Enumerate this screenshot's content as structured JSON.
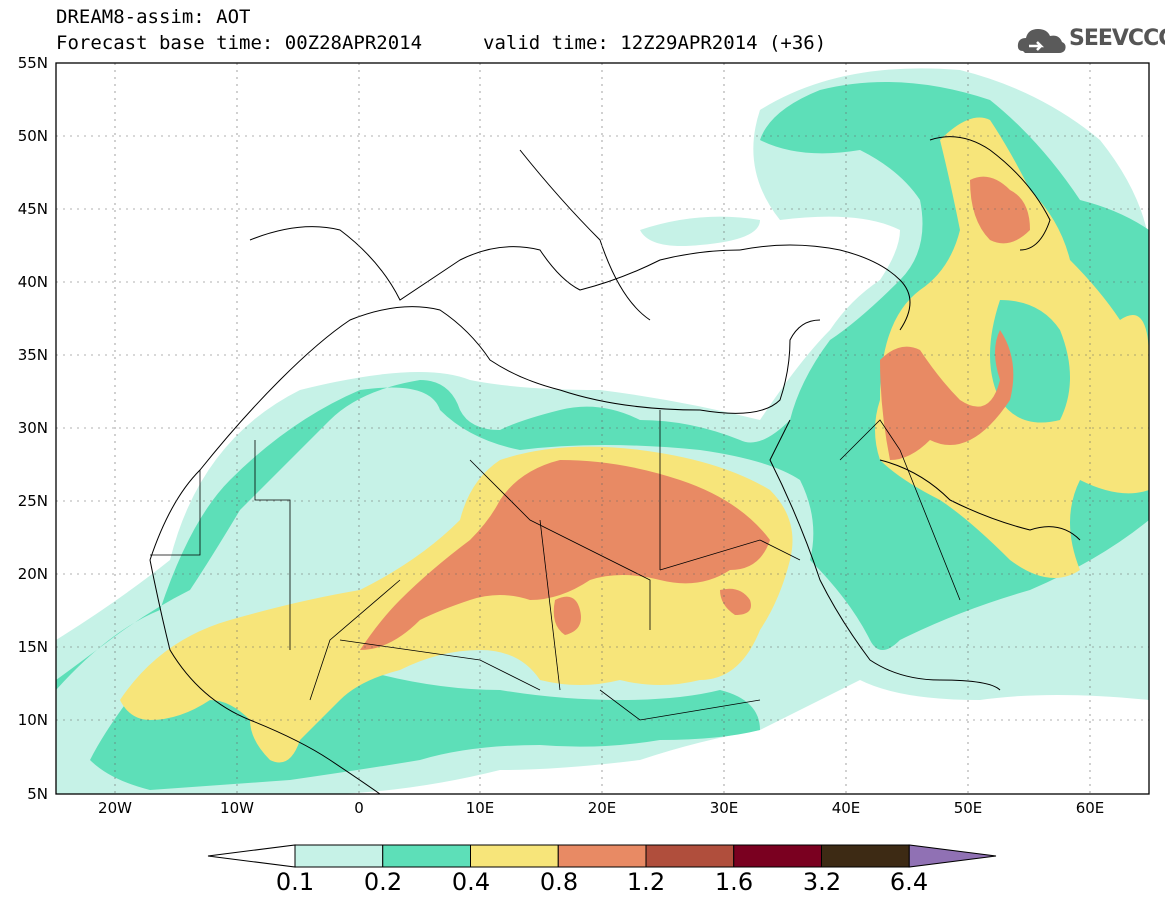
{
  "header": {
    "line1": "DREAM8-assim: AOT",
    "line2_left": "Forecast base time: 00Z28APR2014",
    "line2_right": "valid time: 12Z29APR2014 (+36)"
  },
  "logo": {
    "text": "SEEVCCC",
    "icon": "cloud-icon"
  },
  "map": {
    "lat_labels": [
      "55N",
      "50N",
      "45N",
      "40N",
      "35N",
      "30N",
      "25N",
      "20N",
      "15N",
      "10N",
      "5N"
    ],
    "lon_labels": [
      "20W",
      "10W",
      "0",
      "10E",
      "20E",
      "30E",
      "40E",
      "50E",
      "60E"
    ],
    "grid": "dotted"
  },
  "colorbar": {
    "labels": [
      "0.1",
      "0.2",
      "0.4",
      "0.8",
      "1.2",
      "1.6",
      "3.2",
      "6.4"
    ],
    "colors": [
      "#ffffff",
      "#c6f2e7",
      "#5ddfb8",
      "#f7e57a",
      "#e88a64",
      "#b04e3c",
      "#7a0020",
      "#3d2a14",
      "#9071b4"
    ]
  }
}
